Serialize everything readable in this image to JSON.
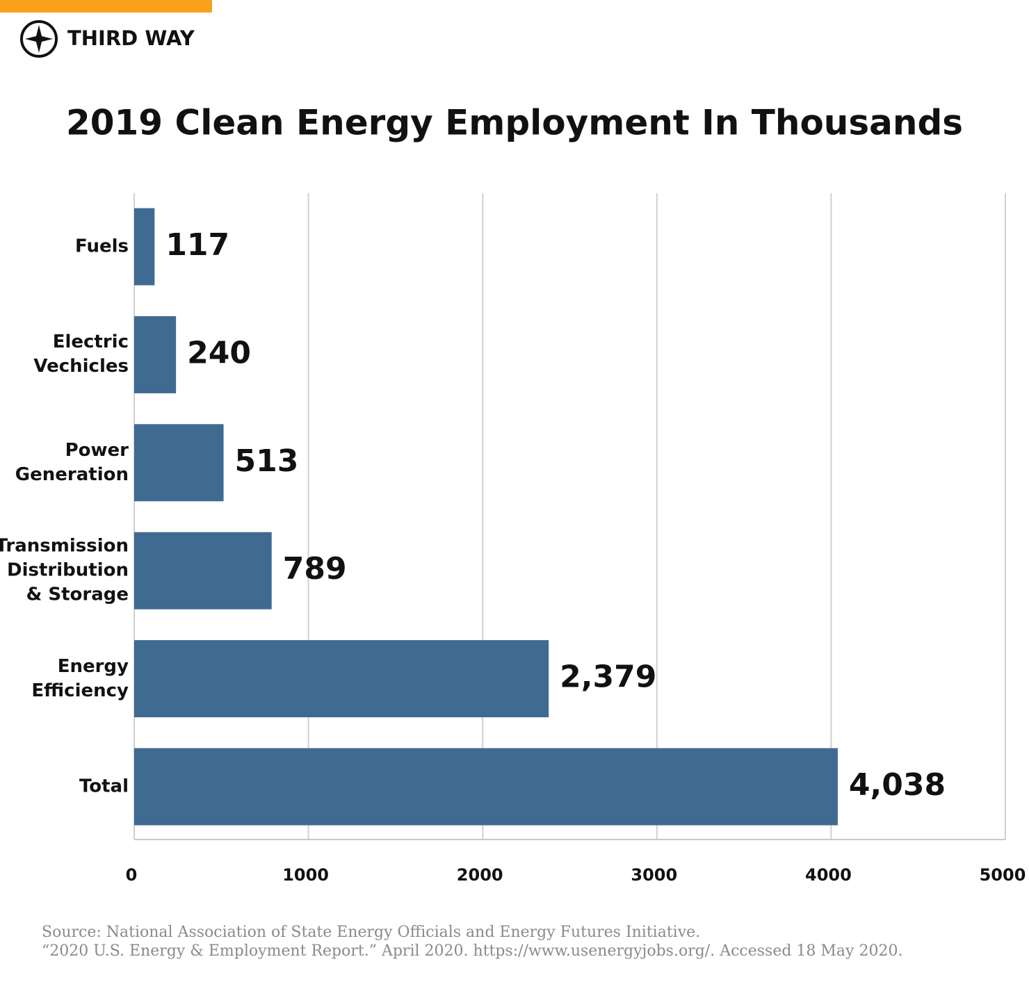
{
  "header": {
    "brand": "THIRD WAY"
  },
  "chart_data": {
    "type": "bar",
    "orientation": "horizontal",
    "title": "2019 Clean Energy Employment In Thousands",
    "categories": [
      "Fuels",
      "Electric\nVechicles",
      "Power\nGeneration",
      "Transmission\nDistribution\n& Storage",
      "Energy\nEfficiency",
      "Total"
    ],
    "values": [
      117,
      240,
      513,
      789,
      2379,
      4038
    ],
    "value_labels": [
      "117",
      "240",
      "513",
      "789",
      "2,379",
      "4,038"
    ],
    "color": "#3f6a92",
    "xlim": [
      0,
      5000
    ],
    "xticks": [
      0,
      1000,
      2000,
      3000,
      4000,
      5000
    ],
    "grid": true
  },
  "source": [
    "Source: National Association of State Energy Officials and Energy Futures Initiative.",
    "“2020 U.S. Energy & Employment Report.” April 2020. https://www.usenergyjobs.org/. Accessed 18 May 2020."
  ]
}
